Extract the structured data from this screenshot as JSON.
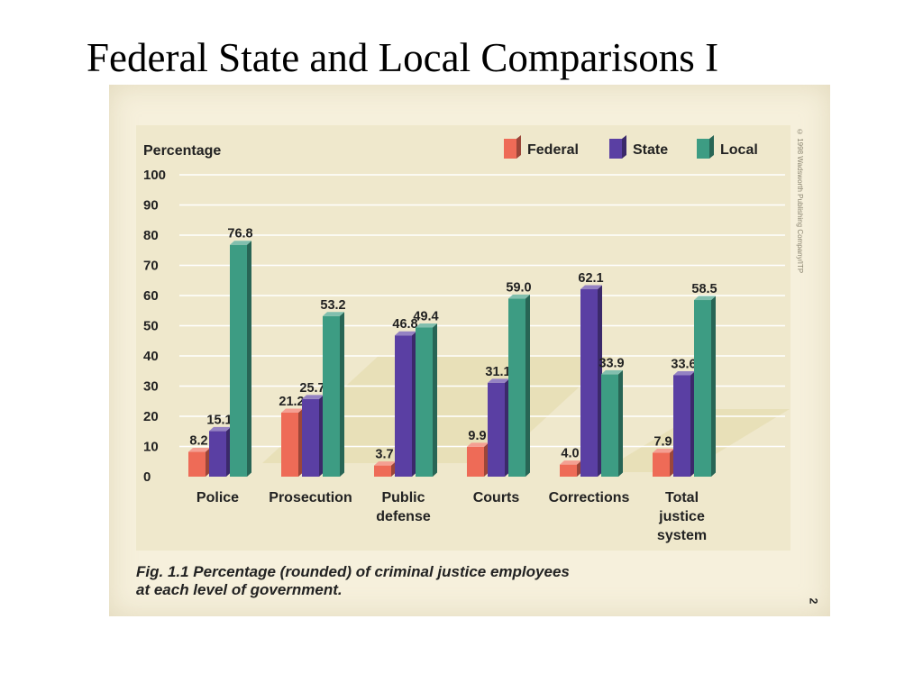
{
  "slide": {
    "title": "Federal State and Local Comparisons I"
  },
  "figure": {
    "caption_line1": "Fig. 1.1  Percentage (rounded) of criminal justice employees",
    "caption_line2": "at each level of government.",
    "credit": "© 1998 Wadsworth Publishing Company/ITP",
    "page_number": "2"
  },
  "colors": {
    "Federal": "#ee6b57",
    "State": "#5a3fa3",
    "Local": "#3d9c83",
    "gridline": "#ffffff",
    "decor_stripe": "#e2d8a8"
  },
  "chart_data": {
    "type": "bar",
    "ylabel": "Percentage",
    "ylim": [
      0,
      100
    ],
    "yticks": [
      0,
      10,
      20,
      30,
      40,
      50,
      60,
      70,
      80,
      90,
      100
    ],
    "grid": true,
    "legend_position": "top-right",
    "categories": [
      [
        "Police"
      ],
      [
        "Prosecution"
      ],
      [
        "Public",
        "defense"
      ],
      [
        "Courts"
      ],
      [
        "Corrections"
      ],
      [
        "Total",
        "justice",
        "system"
      ]
    ],
    "series": [
      {
        "name": "Federal",
        "values": [
          8.2,
          21.2,
          3.7,
          9.9,
          4.0,
          7.9
        ],
        "labels": [
          "8.2",
          "21.2",
          "3.7",
          "9.9",
          "4.0",
          "7.9"
        ]
      },
      {
        "name": "State",
        "values": [
          15.1,
          25.7,
          46.8,
          31.1,
          62.1,
          33.6
        ],
        "labels": [
          "15.1",
          "25.7",
          "46.8",
          "31.1",
          "62.1",
          "33.6"
        ]
      },
      {
        "name": "Local",
        "values": [
          76.8,
          53.2,
          49.4,
          59.0,
          33.9,
          58.5
        ],
        "labels": [
          "76.8",
          "53.2",
          "49.4",
          "59.0",
          "33.9",
          "58.5"
        ]
      }
    ]
  }
}
